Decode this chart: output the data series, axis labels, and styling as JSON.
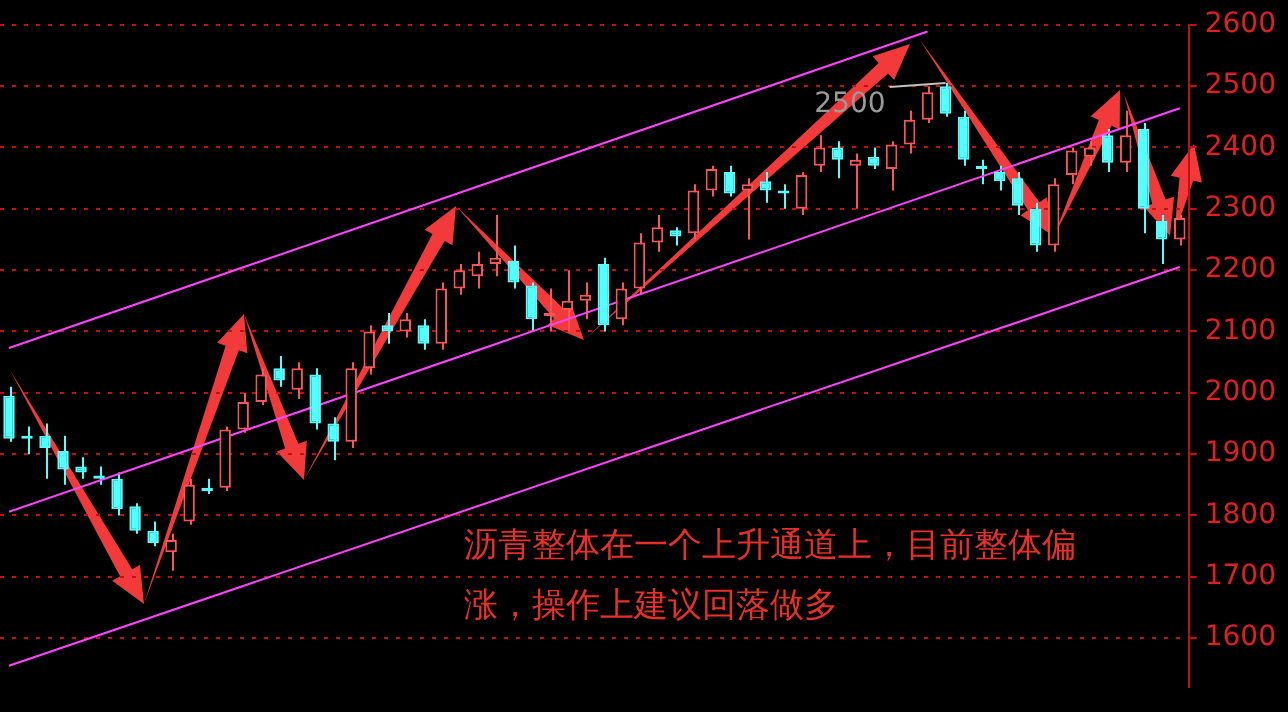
{
  "chart_data": {
    "type": "candlestick",
    "categories": [
      null,
      null,
      null,
      null,
      null,
      null,
      null,
      null,
      null,
      null,
      null,
      null,
      null,
      null,
      null,
      null,
      null,
      null,
      null,
      null,
      null,
      null,
      null,
      null,
      null,
      null,
      null,
      null,
      null,
      null,
      null,
      null,
      null,
      null,
      null,
      null,
      null,
      null,
      null,
      null,
      null,
      null,
      null,
      null,
      null,
      null,
      null,
      null,
      null,
      null,
      null,
      null,
      null,
      null,
      null,
      null,
      null,
      null,
      null,
      null,
      null,
      null,
      null,
      null,
      null,
      null
    ],
    "ohlc": [
      [
        1995,
        2010,
        1920,
        1925
      ],
      [
        1930,
        1945,
        1900,
        1925
      ],
      [
        1930,
        1950,
        1860,
        1910
      ],
      [
        1905,
        1930,
        1850,
        1875
      ],
      [
        1880,
        1895,
        1860,
        1870
      ],
      [
        1865,
        1880,
        1850,
        1860
      ],
      [
        1860,
        1870,
        1800,
        1810
      ],
      [
        1815,
        1820,
        1770,
        1775
      ],
      [
        1775,
        1790,
        1750,
        1755
      ],
      [
        1740,
        1770,
        1710,
        1760
      ],
      [
        1790,
        1860,
        1785,
        1850
      ],
      [
        1845,
        1860,
        1835,
        1840
      ],
      [
        1845,
        1945,
        1840,
        1940
      ],
      [
        1940,
        2000,
        1935,
        1985
      ],
      [
        1985,
        2040,
        1980,
        2030
      ],
      [
        2040,
        2060,
        2010,
        2020
      ],
      [
        2005,
        2050,
        1990,
        2040
      ],
      [
        2030,
        2040,
        1940,
        1950
      ],
      [
        1950,
        1960,
        1890,
        1920
      ],
      [
        1920,
        2050,
        1910,
        2040
      ],
      [
        2040,
        2110,
        2030,
        2100
      ],
      [
        2110,
        2130,
        2080,
        2100
      ],
      [
        2100,
        2130,
        2090,
        2120
      ],
      [
        2110,
        2120,
        2070,
        2080
      ],
      [
        2080,
        2180,
        2070,
        2170
      ],
      [
        2170,
        2210,
        2160,
        2200
      ],
      [
        2190,
        2230,
        2170,
        2210
      ],
      [
        2210,
        2290,
        2190,
        2220
      ],
      [
        2215,
        2240,
        2170,
        2180
      ],
      [
        2175,
        2180,
        2100,
        2120
      ],
      [
        2125,
        2170,
        2100,
        2130
      ],
      [
        2135,
        2200,
        2100,
        2150
      ],
      [
        2150,
        2180,
        2120,
        2160
      ],
      [
        2210,
        2220,
        2100,
        2110
      ],
      [
        2120,
        2180,
        2110,
        2170
      ],
      [
        2170,
        2260,
        2160,
        2245
      ],
      [
        2245,
        2290,
        2230,
        2270
      ],
      [
        2265,
        2270,
        2240,
        2255
      ],
      [
        2260,
        2340,
        2250,
        2330
      ],
      [
        2330,
        2370,
        2320,
        2365
      ],
      [
        2360,
        2370,
        2320,
        2325
      ],
      [
        2330,
        2350,
        2250,
        2340
      ],
      [
        2345,
        2360,
        2310,
        2330
      ],
      [
        2330,
        2340,
        2300,
        2325
      ],
      [
        2300,
        2360,
        2290,
        2355
      ],
      [
        2370,
        2420,
        2360,
        2400
      ],
      [
        2400,
        2410,
        2350,
        2380
      ],
      [
        2370,
        2390,
        2300,
        2380
      ],
      [
        2385,
        2400,
        2365,
        2370
      ],
      [
        2365,
        2410,
        2330,
        2405
      ],
      [
        2405,
        2460,
        2390,
        2445
      ],
      [
        2445,
        2500,
        2440,
        2490
      ],
      [
        2500,
        2505,
        2450,
        2455
      ],
      [
        2450,
        2460,
        2370,
        2380
      ],
      [
        2370,
        2380,
        2340,
        2365
      ],
      [
        2360,
        2370,
        2330,
        2345
      ],
      [
        2350,
        2360,
        2290,
        2305
      ],
      [
        2300,
        2310,
        2230,
        2240
      ],
      [
        2240,
        2350,
        2230,
        2340
      ],
      [
        2355,
        2400,
        2340,
        2395
      ],
      [
        2385,
        2410,
        2370,
        2400
      ],
      [
        2420,
        2430,
        2360,
        2375
      ],
      [
        2375,
        2460,
        2360,
        2420
      ],
      [
        2430,
        2440,
        2260,
        2300
      ],
      [
        2280,
        2290,
        2210,
        2250
      ],
      [
        2250,
        2290,
        2240,
        2285
      ]
    ],
    "colors": [
      "#54ffff",
      "#54ffff",
      "#54ffff",
      "#54ffff",
      "#54ffff",
      "#54ffff",
      "#54ffff",
      "#54ffff",
      "#54ffff",
      "#ff5454",
      "#ff5454",
      "#54ffff",
      "#ff5454",
      "#ff5454",
      "#ff5454",
      "#54ffff",
      "#ff5454",
      "#54ffff",
      "#54ffff",
      "#ff5454",
      "#ff5454",
      "#54ffff",
      "#ff5454",
      "#54ffff",
      "#ff5454",
      "#ff5454",
      "#ff5454",
      "#ff5454",
      "#54ffff",
      "#54ffff",
      "#ff5454",
      "#ff5454",
      "#ff5454",
      "#54ffff",
      "#ff5454",
      "#ff5454",
      "#ff5454",
      "#54ffff",
      "#ff5454",
      "#ff5454",
      "#54ffff",
      "#ff5454",
      "#54ffff",
      "#54ffff",
      "#ff5454",
      "#ff5454",
      "#54ffff",
      "#ff5454",
      "#54ffff",
      "#ff5454",
      "#ff5454",
      "#ff5454",
      "#54ffff",
      "#54ffff",
      "#54ffff",
      "#54ffff",
      "#54ffff",
      "#54ffff",
      "#ff5454",
      "#ff5454",
      "#ff5454",
      "#54ffff",
      "#ff5454",
      "#54ffff",
      "#54ffff",
      "#ff5454"
    ],
    "series": [
      {
        "type": "line",
        "color": "#ff44ff",
        "values": [
          2073,
          null,
          null,
          null,
          null,
          null,
          null,
          null,
          null,
          null,
          null,
          null,
          null,
          null,
          null,
          null,
          null,
          null,
          null,
          null,
          null,
          null,
          null,
          null,
          null,
          null,
          null,
          null,
          null,
          null,
          null,
          null,
          null,
          null,
          null,
          null,
          null,
          null,
          null,
          null,
          null,
          null,
          null,
          null,
          null,
          null,
          null,
          null,
          null,
          null,
          null,
          2589,
          null,
          null,
          null,
          null,
          null,
          null,
          null,
          null,
          null,
          null,
          null,
          null,
          null,
          null
        ]
      },
      {
        "type": "line",
        "color": "#ff44ff",
        "values": [
          1806,
          null,
          null,
          null,
          null,
          null,
          null,
          null,
          null,
          null,
          null,
          null,
          null,
          null,
          null,
          null,
          null,
          null,
          null,
          null,
          null,
          null,
          null,
          null,
          null,
          null,
          null,
          null,
          null,
          null,
          null,
          null,
          null,
          null,
          null,
          null,
          null,
          null,
          null,
          null,
          null,
          null,
          null,
          null,
          null,
          null,
          null,
          null,
          null,
          null,
          null,
          null,
          null,
          null,
          null,
          null,
          null,
          null,
          null,
          null,
          null,
          null,
          null,
          null,
          null,
          2464
        ]
      },
      {
        "type": "line",
        "color": "#ff44ff",
        "values": [
          1555,
          null,
          null,
          null,
          null,
          null,
          null,
          null,
          null,
          null,
          null,
          null,
          null,
          null,
          null,
          null,
          null,
          null,
          null,
          null,
          null,
          null,
          null,
          null,
          null,
          null,
          null,
          null,
          null,
          null,
          null,
          null,
          null,
          null,
          null,
          null,
          null,
          null,
          null,
          null,
          null,
          null,
          null,
          null,
          null,
          null,
          null,
          null,
          null,
          null,
          null,
          null,
          null,
          null,
          null,
          null,
          null,
          null,
          null,
          null,
          null,
          null,
          null,
          null,
          null,
          2205
        ]
      }
    ],
    "ylim": [
      1520,
      2600
    ],
    "yticks": [
      1600,
      1700,
      1800,
      1900,
      2000,
      2100,
      2200,
      2300,
      2400,
      2500,
      2600
    ],
    "grid": "y",
    "tick_labels": "y",
    "line_style": "solid",
    "marker": "none",
    "annotations": [
      "2500",
      "沥青整体在一个上升通道上，目前整体偏涨，操作上建议回落做多"
    ]
  }
}
